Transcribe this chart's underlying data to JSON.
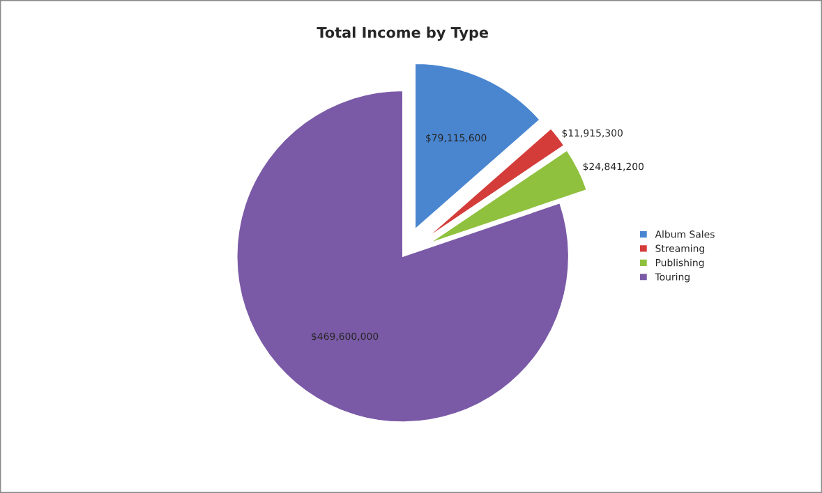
{
  "chart_data": {
    "type": "pie",
    "title": "Total Income by Type",
    "categories": [
      "Album Sales",
      "Streaming",
      "Publishing",
      "Touring"
    ],
    "values": [
      79115600,
      11915300,
      24841200,
      469600000
    ],
    "value_labels": [
      "$79,115,600",
      "$11,915,300",
      "$24,841,200",
      "$469,600,000"
    ],
    "colors": [
      "#4a86d0",
      "#d43c3a",
      "#8fc13e",
      "#7a5aa6"
    ],
    "legend": "right"
  }
}
